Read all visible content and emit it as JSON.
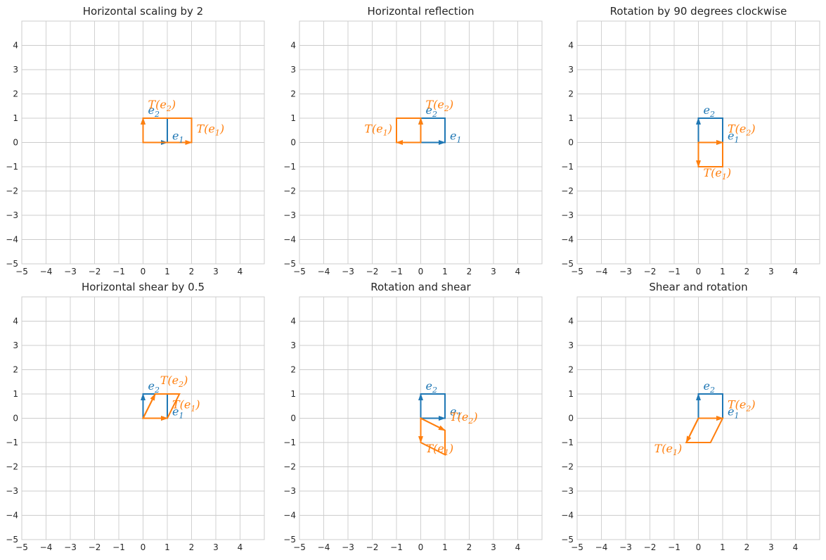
{
  "colors": {
    "original": "#1f77b4",
    "transformed": "#ff7f0e",
    "grid": "#cccccc",
    "text": "#262626"
  },
  "labels": {
    "e1": "e",
    "e1_sub": "1",
    "e2": "e",
    "e2_sub": "2",
    "Te1_pre": "T(e",
    "Te1_sub": "1",
    "Te1_post": ")",
    "Te2_pre": "T(e",
    "Te2_sub": "2",
    "Te2_post": ")"
  },
  "chart_data": [
    {
      "type": "line",
      "title": "Horizontal scaling by 2",
      "xlim": [
        -5,
        5
      ],
      "ylim": [
        -5,
        5
      ],
      "xticks": [
        -5,
        -4,
        -3,
        -2,
        -1,
        0,
        1,
        2,
        3,
        4
      ],
      "yticks": [
        -5,
        -4,
        -3,
        -2,
        -1,
        0,
        1,
        2,
        3,
        4
      ],
      "grid": true,
      "basis": {
        "e1": [
          1,
          0
        ],
        "e2": [
          0,
          1
        ]
      },
      "transformed": {
        "Te1": [
          2,
          0
        ],
        "Te2": [
          0,
          1
        ]
      },
      "original_square": [
        [
          0,
          0
        ],
        [
          1,
          0
        ],
        [
          1,
          1
        ],
        [
          0,
          1
        ]
      ],
      "transformed_square": [
        [
          0,
          0
        ],
        [
          2,
          0
        ],
        [
          2,
          1
        ],
        [
          0,
          1
        ]
      ]
    },
    {
      "type": "line",
      "title": "Horizontal reflection",
      "xlim": [
        -5,
        5
      ],
      "ylim": [
        -5,
        5
      ],
      "xticks": [
        -5,
        -4,
        -3,
        -2,
        -1,
        0,
        1,
        2,
        3,
        4
      ],
      "yticks": [
        -5,
        -4,
        -3,
        -2,
        -1,
        0,
        1,
        2,
        3,
        4
      ],
      "grid": true,
      "basis": {
        "e1": [
          1,
          0
        ],
        "e2": [
          0,
          1
        ]
      },
      "transformed": {
        "Te1": [
          -1,
          0
        ],
        "Te2": [
          0,
          1
        ]
      },
      "original_square": [
        [
          0,
          0
        ],
        [
          1,
          0
        ],
        [
          1,
          1
        ],
        [
          0,
          1
        ]
      ],
      "transformed_square": [
        [
          0,
          0
        ],
        [
          -1,
          0
        ],
        [
          -1,
          1
        ],
        [
          0,
          1
        ]
      ]
    },
    {
      "type": "line",
      "title": "Rotation by 90 degrees clockwise",
      "xlim": [
        -5,
        5
      ],
      "ylim": [
        -5,
        5
      ],
      "xticks": [
        -5,
        -4,
        -3,
        -2,
        -1,
        0,
        1,
        2,
        3,
        4
      ],
      "yticks": [
        -5,
        -4,
        -3,
        -2,
        -1,
        0,
        1,
        2,
        3,
        4
      ],
      "grid": true,
      "basis": {
        "e1": [
          1,
          0
        ],
        "e2": [
          0,
          1
        ]
      },
      "transformed": {
        "Te1": [
          0,
          -1
        ],
        "Te2": [
          1,
          0
        ]
      },
      "original_square": [
        [
          0,
          0
        ],
        [
          1,
          0
        ],
        [
          1,
          1
        ],
        [
          0,
          1
        ]
      ],
      "transformed_square": [
        [
          0,
          0
        ],
        [
          0,
          -1
        ],
        [
          1,
          -1
        ],
        [
          1,
          0
        ]
      ]
    },
    {
      "type": "line",
      "title": "Horizontal shear by 0.5",
      "xlim": [
        -5,
        5
      ],
      "ylim": [
        -5,
        5
      ],
      "xticks": [
        -5,
        -4,
        -3,
        -2,
        -1,
        0,
        1,
        2,
        3,
        4
      ],
      "yticks": [
        -5,
        -4,
        -3,
        -2,
        -1,
        0,
        1,
        2,
        3,
        4
      ],
      "grid": true,
      "basis": {
        "e1": [
          1,
          0
        ],
        "e2": [
          0,
          1
        ]
      },
      "transformed": {
        "Te1": [
          1,
          0
        ],
        "Te2": [
          0.5,
          1
        ]
      },
      "original_square": [
        [
          0,
          0
        ],
        [
          1,
          0
        ],
        [
          1,
          1
        ],
        [
          0,
          1
        ]
      ],
      "transformed_square": [
        [
          0,
          0
        ],
        [
          1,
          0
        ],
        [
          1.5,
          1
        ],
        [
          0.5,
          1
        ]
      ]
    },
    {
      "type": "line",
      "title": "Rotation and shear",
      "xlim": [
        -5,
        5
      ],
      "ylim": [
        -5,
        5
      ],
      "xticks": [
        -5,
        -4,
        -3,
        -2,
        -1,
        0,
        1,
        2,
        3,
        4
      ],
      "yticks": [
        -5,
        -4,
        -3,
        -2,
        -1,
        0,
        1,
        2,
        3,
        4
      ],
      "grid": true,
      "basis": {
        "e1": [
          1,
          0
        ],
        "e2": [
          0,
          1
        ]
      },
      "transformed": {
        "Te1": [
          0,
          -1
        ],
        "Te2": [
          1,
          -0.5
        ]
      },
      "original_square": [
        [
          0,
          0
        ],
        [
          1,
          0
        ],
        [
          1,
          1
        ],
        [
          0,
          1
        ]
      ],
      "transformed_square": [
        [
          0,
          0
        ],
        [
          0,
          -1
        ],
        [
          1,
          -1.5
        ],
        [
          1,
          -0.5
        ]
      ]
    },
    {
      "type": "line",
      "title": "Shear and rotation",
      "xlim": [
        -5,
        5
      ],
      "ylim": [
        -5,
        5
      ],
      "xticks": [
        -5,
        -4,
        -3,
        -2,
        -1,
        0,
        1,
        2,
        3,
        4
      ],
      "yticks": [
        -5,
        -4,
        -3,
        -2,
        -1,
        0,
        1,
        2,
        3,
        4
      ],
      "grid": true,
      "basis": {
        "e1": [
          1,
          0
        ],
        "e2": [
          0,
          1
        ]
      },
      "transformed": {
        "Te1": [
          -0.5,
          -1
        ],
        "Te2": [
          1,
          0
        ]
      },
      "original_square": [
        [
          0,
          0
        ],
        [
          1,
          0
        ],
        [
          1,
          1
        ],
        [
          0,
          1
        ]
      ],
      "transformed_square": [
        [
          0,
          0
        ],
        [
          -0.5,
          -1
        ],
        [
          0.5,
          -1
        ],
        [
          1,
          0
        ]
      ]
    }
  ]
}
